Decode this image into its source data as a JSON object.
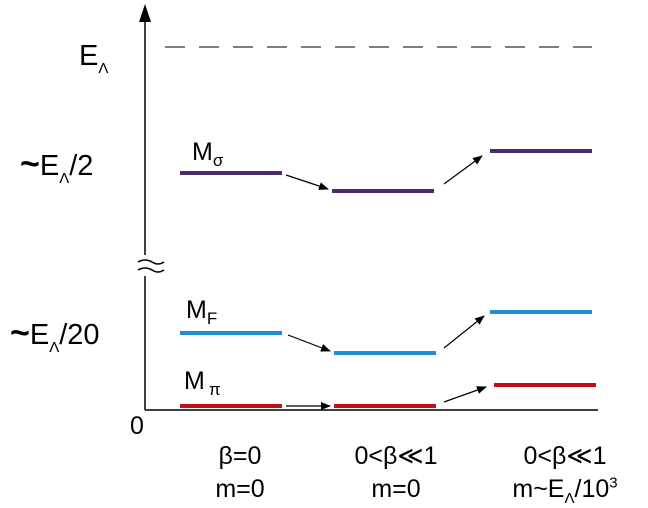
{
  "energy_labels": {
    "e_lambda": {
      "base": "E",
      "sub": "Λ"
    },
    "half": {
      "tilde": "~",
      "base": "E",
      "sub": "Λ",
      "tail": "/2"
    },
    "twentieth": {
      "tilde": "~",
      "base": "E",
      "sub": "Λ",
      "tail": "/20"
    },
    "zero": "0"
  },
  "mode_labels": {
    "sigma": {
      "base": "M",
      "sub": "σ"
    },
    "f": {
      "base": "M",
      "sub": "F"
    },
    "pi": {
      "base": "M",
      "sub": "π"
    }
  },
  "columns": [
    {
      "line1": "β=0",
      "line2": "m=0"
    },
    {
      "line1": "0<β≪1",
      "line2": "m=0"
    },
    {
      "line1": "0<β≪1",
      "line2_pre": "m~E",
      "line2_sub": "Λ",
      "line2_mid": "/10",
      "line2_sup": "3"
    }
  ],
  "colors": {
    "sigma": "#4b2a6e",
    "f": "#1b8fd4",
    "pi": "#c0101a",
    "axis": "#000000"
  }
}
